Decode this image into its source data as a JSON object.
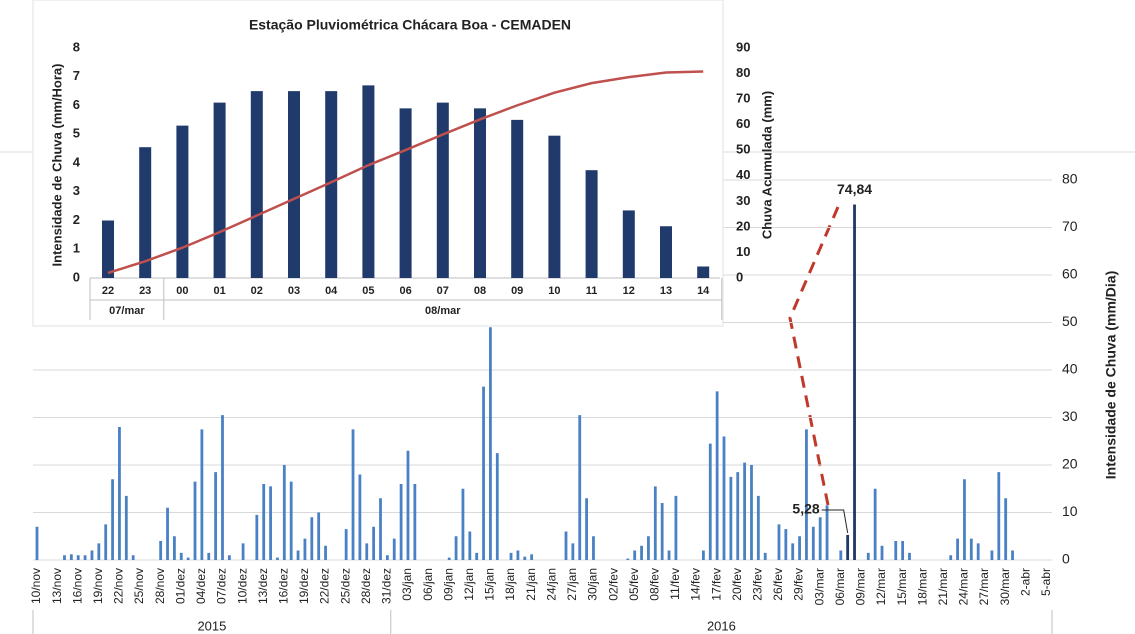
{
  "chart_data": [
    {
      "type": "bar",
      "y_label": "Intensidade de Chuva (mm/Dia)",
      "categories": [
        "10/nov",
        null,
        null,
        "13/nov",
        null,
        null,
        "16/nov",
        null,
        null,
        "19/nov",
        null,
        null,
        "22/nov",
        null,
        null,
        "25/nov",
        null,
        null,
        "28/nov",
        null,
        null,
        "01/dez",
        null,
        null,
        "04/dez",
        null,
        null,
        "07/dez",
        null,
        null,
        "10/dez",
        null,
        null,
        "13/dez",
        null,
        null,
        "16/dez",
        null,
        null,
        "19/dez",
        null,
        null,
        "22/dez",
        null,
        null,
        "25/dez",
        null,
        null,
        "28/dez",
        null,
        null,
        "31/dez",
        null,
        null,
        "03/jan",
        null,
        null,
        "06/jan",
        null,
        null,
        "09/jan",
        null,
        null,
        "12/jan",
        null,
        null,
        "15/jan",
        null,
        null,
        "18/jan",
        null,
        null,
        "21/jan",
        null,
        null,
        "24/jan",
        null,
        null,
        "27/jan",
        null,
        null,
        "30/jan",
        null,
        null,
        "02/fev",
        null,
        null,
        "05/fev",
        null,
        null,
        "08/fev",
        null,
        null,
        "11/fev",
        null,
        null,
        "14/fev",
        null,
        null,
        "17/fev",
        null,
        null,
        "20/fev",
        null,
        null,
        "23/fev",
        null,
        null,
        "26/fev",
        null,
        null,
        "29/fev",
        null,
        null,
        "03/mar",
        null,
        null,
        "06/mar",
        null,
        null,
        "09/mar",
        null,
        null,
        "12/mar",
        null,
        null,
        "15/mar",
        null,
        null,
        "18/mar",
        null,
        null,
        "21/mar",
        null,
        null,
        "24/mar",
        null,
        null,
        "27/mar",
        null,
        null,
        "30/mar",
        null,
        null,
        "2-abr",
        null,
        null,
        "5-abr"
      ],
      "values": [
        7,
        0,
        0,
        0,
        1,
        1.2,
        1,
        1,
        2,
        3.5,
        7.5,
        17,
        28,
        13.5,
        1,
        0,
        0,
        0,
        4,
        11,
        5,
        1.5,
        0.5,
        16.5,
        27.5,
        1.5,
        18.5,
        30.5,
        1,
        0,
        3.5,
        0,
        9.5,
        16,
        15.5,
        0.5,
        20,
        16.5,
        2,
        4.5,
        9,
        10,
        3,
        0,
        0,
        6.5,
        27.5,
        18,
        3.5,
        7,
        13,
        1,
        4.5,
        16,
        23,
        16,
        0,
        0,
        0,
        0,
        0.5,
        5,
        15,
        6,
        1.5,
        36.5,
        49,
        22.5,
        0,
        1.5,
        2,
        0.7,
        1.2,
        0,
        0,
        0,
        0,
        6,
        3.5,
        30.5,
        13,
        5,
        0,
        0,
        0,
        0,
        0.3,
        2,
        3,
        5,
        15.5,
        12,
        2,
        13.5,
        0,
        0,
        0,
        2,
        24.5,
        35.5,
        26,
        17.5,
        18.5,
        20.5,
        20,
        13.5,
        1.5,
        0,
        7.5,
        6.5,
        3.5,
        5,
        27.5,
        7,
        9,
        11.5,
        0,
        2,
        5.28,
        74.84,
        0,
        1.5,
        15,
        3,
        0,
        4,
        4,
        1.5,
        0,
        0,
        0,
        0,
        0,
        1,
        4.5,
        17,
        4.5,
        3.5,
        0,
        2,
        18.5,
        13,
        2,
        0,
        0,
        0,
        0,
        0
      ],
      "value_labels": [
        null,
        null,
        null,
        null,
        null,
        null,
        null,
        null,
        null,
        null,
        null,
        null,
        null,
        null,
        null,
        null,
        null,
        null,
        null,
        null,
        null,
        null,
        null,
        null,
        null,
        null,
        null,
        null,
        null,
        null,
        null,
        null,
        null,
        null,
        null,
        null,
        null,
        null,
        null,
        null,
        null,
        null,
        null,
        null,
        null,
        null,
        null,
        null,
        null,
        null,
        null,
        null,
        null,
        null,
        null,
        null,
        null,
        null,
        null,
        null,
        null,
        null,
        null,
        null,
        null,
        null,
        null,
        null,
        null,
        null,
        null,
        null,
        null,
        null,
        null,
        null,
        null,
        null,
        null,
        null,
        null,
        null,
        null,
        null,
        null,
        null,
        null,
        null,
        null,
        null,
        null,
        null,
        null,
        null,
        null,
        null,
        null,
        null,
        null,
        null,
        null,
        null,
        null,
        null,
        null,
        null,
        null,
        null,
        null,
        null,
        null,
        null,
        null,
        null,
        null,
        null,
        null,
        null,
        "5,28",
        "74,84",
        null,
        null,
        null,
        null,
        null,
        null,
        null,
        null,
        null,
        null,
        null,
        null,
        null,
        null,
        null,
        null,
        null,
        null,
        null,
        null,
        null,
        null,
        null,
        null,
        null,
        null,
        null,
        null
      ],
      "colors": [
        "#4a80c4",
        "#4a80c4",
        "#4a80c4",
        "#4a80c4",
        "#4a80c4",
        "#4a80c4",
        "#4a80c4",
        "#4a80c4",
        "#4a80c4",
        "#4a80c4",
        "#4a80c4",
        "#4a80c4",
        "#4a80c4",
        "#4a80c4",
        "#4a80c4",
        "#4a80c4",
        "#4a80c4",
        "#4a80c4",
        "#4a80c4",
        "#4a80c4",
        "#4a80c4",
        "#4a80c4",
        "#4a80c4",
        "#4a80c4",
        "#4a80c4",
        "#4a80c4",
        "#4a80c4",
        "#4a80c4",
        "#4a80c4",
        "#4a80c4",
        "#4a80c4",
        "#4a80c4",
        "#4a80c4",
        "#4a80c4",
        "#4a80c4",
        "#4a80c4",
        "#4a80c4",
        "#4a80c4",
        "#4a80c4",
        "#4a80c4",
        "#4a80c4",
        "#4a80c4",
        "#4a80c4",
        "#4a80c4",
        "#4a80c4",
        "#4a80c4",
        "#4a80c4",
        "#4a80c4",
        "#4a80c4",
        "#4a80c4",
        "#4a80c4",
        "#4a80c4",
        "#4a80c4",
        "#4a80c4",
        "#4a80c4",
        "#4a80c4",
        "#4a80c4",
        "#4a80c4",
        "#4a80c4",
        "#4a80c4",
        "#4a80c4",
        "#4a80c4",
        "#4a80c4",
        "#4a80c4",
        "#4a80c4",
        "#4a80c4",
        "#4a80c4",
        "#4a80c4",
        "#4a80c4",
        "#4a80c4",
        "#4a80c4",
        "#4a80c4",
        "#4a80c4",
        "#4a80c4",
        "#4a80c4",
        "#4a80c4",
        "#4a80c4",
        "#4a80c4",
        "#4a80c4",
        "#4a80c4",
        "#4a80c4",
        "#4a80c4",
        "#4a80c4",
        "#4a80c4",
        "#4a80c4",
        "#4a80c4",
        "#4a80c4",
        "#4a80c4",
        "#4a80c4",
        "#4a80c4",
        "#4a80c4",
        "#4a80c4",
        "#4a80c4",
        "#4a80c4",
        "#4a80c4",
        "#4a80c4",
        "#4a80c4",
        "#4a80c4",
        "#4a80c4",
        "#4a80c4",
        "#4a80c4",
        "#4a80c4",
        "#4a80c4",
        "#4a80c4",
        "#4a80c4",
        "#4a80c4",
        "#4a80c4",
        "#4a80c4",
        "#4a80c4",
        "#4a80c4",
        "#4a80c4",
        "#4a80c4",
        "#4a80c4",
        "#4a80c4",
        "#4a80c4",
        "#4a80c4",
        "#4a80c4",
        "#4a80c4",
        "#1f3864",
        "#1f3864",
        "#4a80c4",
        "#4a80c4",
        "#4a80c4",
        "#4a80c4",
        "#4a80c4",
        "#4a80c4",
        "#4a80c4",
        "#4a80c4",
        "#4a80c4",
        "#4a80c4",
        "#4a80c4",
        "#4a80c4",
        "#4a80c4",
        "#4a80c4",
        "#4a80c4",
        "#4a80c4",
        "#4a80c4",
        "#4a80c4",
        "#4a80c4",
        "#4a80c4",
        "#4a80c4",
        "#4a80c4",
        "#4a80c4",
        "#4a80c4",
        "#4a80c4",
        "#4a80c4",
        "#4a80c4",
        "#4a80c4"
      ],
      "ylim": [
        0,
        80
      ],
      "yticks": [
        0,
        10,
        20,
        30,
        40,
        50,
        60,
        70,
        80
      ],
      "grid": true,
      "groups": [
        {
          "label": "2015",
          "to": "31/dez"
        },
        {
          "label": "2016",
          "to": "5-abr"
        }
      ]
    },
    {
      "type": "bar",
      "title": "Estação Pluviométrica Chácara Boa - CEMADEN",
      "y_label": "Intensidade de Chuva (mm/Hora)",
      "y2_label": "Chuva Acumulada (mm)",
      "categories": [
        "22",
        "23",
        "00",
        "01",
        "02",
        "03",
        "04",
        "05",
        "06",
        "07",
        "08",
        "09",
        "10",
        "11",
        "12",
        "13",
        "14"
      ],
      "series": [
        {
          "type": "bar",
          "color": "#1f3a6b",
          "values": [
            2,
            4.55,
            5.3,
            6.1,
            6.5,
            6.5,
            6.5,
            6.7,
            5.9,
            6.1,
            5.9,
            5.5,
            4.95,
            3.75,
            2.35,
            1.8,
            0.4
          ]
        },
        {
          "type": "line",
          "axis": "y2",
          "color": "#c0504d",
          "values": [
            2,
            6.55,
            11.85,
            17.95,
            24.45,
            30.95,
            37.45,
            44.15,
            50.05,
            56.15,
            62.05,
            67.55,
            72.5,
            76.25,
            78.6,
            80.4,
            80.8
          ]
        }
      ],
      "ylim": [
        0,
        8
      ],
      "yticks": [
        0,
        1,
        2,
        3,
        4,
        5,
        6,
        7,
        8
      ],
      "y2lim": [
        0,
        90
      ],
      "y2ticks": [
        0,
        10,
        20,
        30,
        40,
        50,
        60,
        70,
        80,
        90
      ],
      "groups": [
        {
          "label": "07/mar",
          "to": "23"
        },
        {
          "label": "08/mar",
          "to": "14"
        }
      ]
    }
  ]
}
